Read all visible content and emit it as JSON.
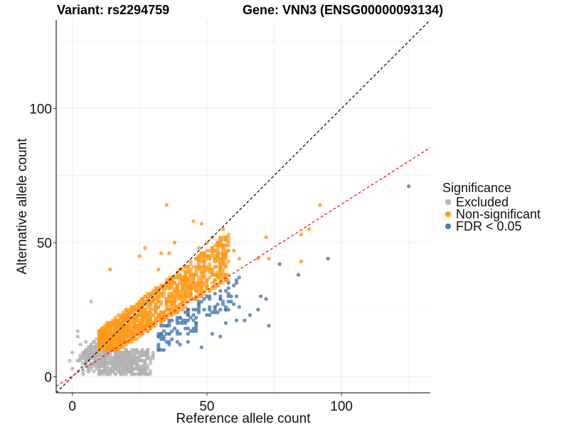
{
  "chart_data": {
    "type": "scatter",
    "title_left": "Variant: rs2294759",
    "title_right": "Gene: VNN3 (ENSG00000093134)",
    "xlabel": "Reference allele count",
    "ylabel": "Alternative allele count",
    "xlim": [
      -6,
      133
    ],
    "ylim": [
      -6,
      133
    ],
    "xticks": [
      0,
      50,
      100
    ],
    "yticks": [
      0,
      50,
      100
    ],
    "xtick_labels": [
      "0",
      "50",
      "100"
    ],
    "ytick_labels": [
      "0",
      "50",
      "100"
    ],
    "grid": true,
    "legend": {
      "title": "Significance",
      "position": "right",
      "entries": [
        {
          "label": "Excluded",
          "color": "#b3b3b3"
        },
        {
          "label": "Non-significant",
          "color": "#ff9a1a"
        },
        {
          "label": "FDR < 0.05",
          "color": "#4a7ab0"
        }
      ]
    },
    "reference_lines": [
      {
        "name": "identity",
        "slope": 1.0,
        "intercept": 0,
        "color": "#000000",
        "style": "dashed"
      },
      {
        "name": "fit",
        "slope": 0.64,
        "intercept": 0.3,
        "color": "#ff0000",
        "style": "dashed"
      }
    ],
    "series": [
      {
        "name": "Excluded",
        "color": "#b3b3b3",
        "description": "dense cloud, ref ~0-30, alt ~1-12",
        "points": [
          [
            7,
            28
          ],
          [
            2,
            17
          ],
          [
            2,
            15
          ],
          [
            -1,
            6
          ],
          [
            0,
            3
          ],
          [
            4,
            1
          ],
          [
            6,
            2
          ],
          [
            11,
            2
          ],
          [
            16,
            4
          ],
          [
            26,
            4
          ],
          [
            20,
            5
          ],
          [
            24,
            7
          ],
          [
            30,
            8
          ],
          [
            28,
            10
          ],
          [
            0,
            9
          ],
          [
            3,
            12
          ],
          [
            5,
            13
          ]
        ]
      },
      {
        "name": "Non-significant",
        "color": "#ff9a1a",
        "description": "dense cloud, ref ~10-60, alt ~10-45",
        "points": [
          [
            35,
            64
          ],
          [
            25,
            45
          ],
          [
            38,
            50
          ],
          [
            45,
            58
          ],
          [
            52,
            52
          ],
          [
            48,
            57
          ],
          [
            50,
            50
          ],
          [
            58,
            50
          ],
          [
            55,
            52
          ],
          [
            56,
            55
          ],
          [
            47,
            48
          ],
          [
            33,
            46
          ],
          [
            36,
            46
          ],
          [
            60,
            47
          ],
          [
            62,
            44
          ],
          [
            69,
            44
          ],
          [
            72,
            52
          ],
          [
            27,
            48
          ],
          [
            73,
            44
          ],
          [
            92,
            64
          ],
          [
            85,
            53
          ],
          [
            85,
            43
          ],
          [
            88,
            55
          ],
          [
            32,
            40
          ],
          [
            14,
            40
          ]
        ]
      },
      {
        "name": "FDR < 0.05",
        "color": "#4a7ab0",
        "description": "below the fit line, ref ~35-125, alt ~10-71",
        "points": [
          [
            125,
            71
          ],
          [
            95,
            44
          ],
          [
            77,
            42
          ],
          [
            84,
            38
          ],
          [
            70,
            30
          ],
          [
            72,
            29
          ],
          [
            73,
            19
          ],
          [
            69,
            25
          ],
          [
            66,
            23
          ],
          [
            62,
            26
          ],
          [
            61,
            21
          ],
          [
            64,
            21
          ],
          [
            57,
            20
          ],
          [
            55,
            15
          ],
          [
            52,
            16
          ],
          [
            48,
            11
          ],
          [
            46,
            17
          ],
          [
            45,
            21
          ],
          [
            43,
            13
          ],
          [
            40,
            12
          ]
        ]
      }
    ]
  }
}
